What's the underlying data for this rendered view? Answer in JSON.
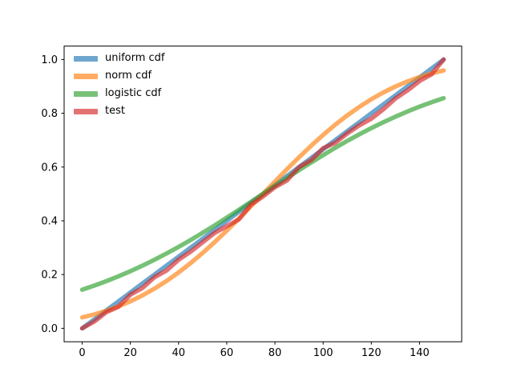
{
  "figure": {
    "background": "#ffffff",
    "spine_color": "#000000",
    "tick_color": "#000000"
  },
  "chart_data": {
    "type": "line",
    "title": "",
    "xlabel": "",
    "ylabel": "",
    "grid": false,
    "legend_position": "upper left",
    "legend_frame": false,
    "xlim": [
      -7.5,
      157.5
    ],
    "ylim": [
      -0.05,
      1.05
    ],
    "x_ticks": [
      0,
      20,
      40,
      60,
      80,
      100,
      120,
      140
    ],
    "x_tick_labels": [
      "0",
      "20",
      "40",
      "60",
      "80",
      "100",
      "120",
      "140"
    ],
    "y_ticks": [
      0.0,
      0.2,
      0.4,
      0.6,
      0.8,
      1.0
    ],
    "y_tick_labels": [
      "0.0",
      "0.2",
      "0.4",
      "0.6",
      "0.8",
      "1.0"
    ],
    "x": [
      0,
      5,
      10,
      15,
      20,
      25,
      30,
      35,
      40,
      45,
      50,
      55,
      60,
      65,
      70,
      75,
      80,
      85,
      90,
      95,
      100,
      105,
      110,
      115,
      120,
      125,
      130,
      135,
      140,
      145,
      150
    ],
    "series": [
      {
        "name": "uniform cdf",
        "color": "#1f77b4",
        "alpha": 0.65,
        "linewidth": 5.5,
        "values": [
          0.0,
          0.0333,
          0.0667,
          0.1,
          0.1333,
          0.1667,
          0.2,
          0.2333,
          0.2667,
          0.3,
          0.3333,
          0.3667,
          0.4,
          0.4333,
          0.4667,
          0.5,
          0.5333,
          0.5667,
          0.6,
          0.6333,
          0.6667,
          0.7,
          0.7333,
          0.7667,
          0.8,
          0.8333,
          0.8667,
          0.9,
          0.9333,
          0.9667,
          1.0
        ]
      },
      {
        "name": "norm cdf",
        "color": "#ff7f0e",
        "alpha": 0.65,
        "linewidth": 5.5,
        "values": [
          0.0406,
          0.0518,
          0.0653,
          0.0815,
          0.1004,
          0.1224,
          0.1477,
          0.1762,
          0.2078,
          0.2427,
          0.2805,
          0.3209,
          0.3636,
          0.4079,
          0.4538,
          0.5,
          0.5462,
          0.5921,
          0.6364,
          0.6791,
          0.7195,
          0.7573,
          0.7922,
          0.8238,
          0.8523,
          0.8776,
          0.8996,
          0.9185,
          0.9347,
          0.9482,
          0.9594
        ]
      },
      {
        "name": "logistic cdf",
        "color": "#2ca02c",
        "alpha": 0.65,
        "linewidth": 5.5,
        "values": [
          0.1437,
          0.1589,
          0.1754,
          0.1933,
          0.2126,
          0.2332,
          0.2551,
          0.2784,
          0.3029,
          0.3286,
          0.3555,
          0.3831,
          0.4116,
          0.4408,
          0.4703,
          0.5,
          0.5297,
          0.5592,
          0.5884,
          0.6169,
          0.6445,
          0.6714,
          0.6971,
          0.7216,
          0.7449,
          0.7668,
          0.7874,
          0.8067,
          0.8246,
          0.8411,
          0.8563
        ]
      },
      {
        "name": "test",
        "color": "#d62728",
        "alpha": 0.65,
        "linewidth": 5.5,
        "values": [
          0.0,
          0.025,
          0.06,
          0.08,
          0.125,
          0.15,
          0.19,
          0.215,
          0.255,
          0.285,
          0.32,
          0.355,
          0.38,
          0.405,
          0.46,
          0.49,
          0.525,
          0.55,
          0.6,
          0.625,
          0.67,
          0.69,
          0.725,
          0.755,
          0.78,
          0.815,
          0.855,
          0.885,
          0.92,
          0.945,
          1.0
        ]
      }
    ]
  }
}
